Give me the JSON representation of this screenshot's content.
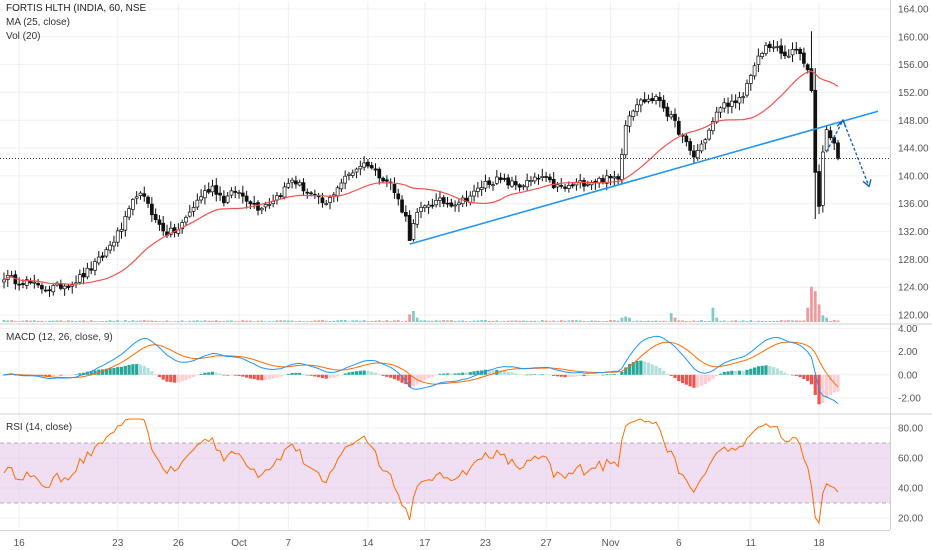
{
  "colors": {
    "up": "#26a69a",
    "down": "#111111",
    "ma": "#ef5350",
    "trendline": "#2196f3",
    "arrow": "#1565c0",
    "macd": "#2196f3",
    "signal": "#ff6d00",
    "hist_pos": "#26a69a",
    "hist_pos_light": "#b2dfdb",
    "hist_neg": "#ef5350",
    "hist_neg_light": "#ffcdd2",
    "rsi": "#ff6d00",
    "rsi_band": "#e1bee7",
    "vol_up": "#80cbc4",
    "vol_down": "#ef9a9a",
    "grid": "#f0f0f0",
    "axis_text": "#555555"
  },
  "legend": {
    "title": "FORTIS HLTH (INDIA, 60, NSE",
    "ma": "MA (25, close)",
    "vol": "Vol (20)",
    "macd": "MACD (12, 26, close, 9)",
    "rsi": "RSI (14, close)"
  },
  "chart_data": [
    {
      "type": "candlestick",
      "title": "FORTIS HLTH (INDIA, 60, NSE",
      "ylim": [
        119,
        165
      ],
      "yticks": [
        "164.00",
        "160.00",
        "156.00",
        "152.00",
        "148.00",
        "144.00",
        "140.00",
        "136.00",
        "132.00",
        "128.00",
        "124.00",
        "120.00"
      ],
      "x_ticks": [
        "16",
        "23",
        "26",
        "Oct",
        "7",
        "14",
        "17",
        "23",
        "27",
        "Nov",
        "6",
        "11",
        "18"
      ],
      "price_path": [
        [
          0,
          125.5
        ],
        [
          3,
          125.0
        ],
        [
          6,
          124.8
        ],
        [
          9,
          124.0
        ],
        [
          12,
          123.8
        ],
        [
          15,
          124.2
        ],
        [
          18,
          124.6
        ],
        [
          21,
          125.8
        ],
        [
          24,
          127.2
        ],
        [
          26,
          128.5
        ],
        [
          29,
          130.8
        ],
        [
          31,
          132.5
        ],
        [
          33,
          134.8
        ],
        [
          35,
          137.5
        ],
        [
          38,
          136.2
        ],
        [
          40,
          133.5
        ],
        [
          43,
          131.8
        ],
        [
          46,
          132.2
        ],
        [
          49,
          134.8
        ],
        [
          52,
          137.2
        ],
        [
          55,
          138.5
        ],
        [
          58,
          136.5
        ],
        [
          61,
          137.8
        ],
        [
          64,
          136.8
        ],
        [
          67,
          135.5
        ],
        [
          70,
          136.2
        ],
        [
          73,
          137.5
        ],
        [
          76,
          139.5
        ],
        [
          79,
          138.2
        ],
        [
          82,
          136.8
        ],
        [
          85,
          135.8
        ],
        [
          88,
          138.5
        ],
        [
          91,
          140.2
        ],
        [
          94,
          141.6
        ],
        [
          96,
          141.8
        ],
        [
          98,
          140.6
        ],
        [
          100,
          139.8
        ],
        [
          102,
          138.8
        ],
        [
          104,
          136.5
        ],
        [
          106,
          134.0
        ],
        [
          107,
          131.2
        ],
        [
          109,
          134.5
        ],
        [
          112,
          136.0
        ],
        [
          115,
          136.3
        ],
        [
          118,
          136.1
        ],
        [
          121,
          136.5
        ],
        [
          124,
          137.5
        ],
        [
          127,
          139.0
        ],
        [
          130,
          139.4
        ],
        [
          133,
          139.0
        ],
        [
          136,
          138.6
        ],
        [
          139,
          139.2
        ],
        [
          142,
          139.8
        ],
        [
          145,
          138.6
        ],
        [
          148,
          138.2
        ],
        [
          151,
          138.8
        ],
        [
          154,
          139.2
        ],
        [
          157,
          139.4
        ],
        [
          160,
          139.6
        ],
        [
          162,
          140.0
        ],
        [
          163,
          143.5
        ],
        [
          164,
          147.5
        ],
        [
          165,
          149.0
        ],
        [
          167,
          150.5
        ],
        [
          170,
          151.0
        ],
        [
          173,
          151.0
        ],
        [
          175,
          149.0
        ],
        [
          177,
          147.5
        ],
        [
          179,
          145.5
        ],
        [
          181,
          143.5
        ],
        [
          182,
          142.8
        ],
        [
          184,
          144.5
        ],
        [
          186,
          146.5
        ],
        [
          189,
          150.0
        ],
        [
          191,
          150.5
        ],
        [
          193,
          150.2
        ],
        [
          195,
          151.5
        ],
        [
          197,
          154.8
        ],
        [
          199,
          156.8
        ],
        [
          201,
          158.5
        ],
        [
          203,
          158.8
        ],
        [
          205,
          157.5
        ],
        [
          207,
          157.0
        ],
        [
          209,
          158.5
        ],
        [
          211,
          156.5
        ],
        [
          212,
          155.5
        ],
        [
          213,
          152.0
        ],
        [
          214,
          141.0
        ],
        [
          215,
          135.5
        ],
        [
          216,
          143.0
        ],
        [
          217,
          147.0
        ],
        [
          218,
          145.5
        ],
        [
          219,
          144.5
        ],
        [
          220,
          143.0
        ]
      ],
      "n_bars": 221,
      "ma_period": 25,
      "volume_spikes": [
        [
          107,
          3.5
        ],
        [
          108,
          5.0
        ],
        [
          109,
          2.0
        ],
        [
          163,
          2.0
        ],
        [
          164,
          2.5
        ],
        [
          165,
          2.0
        ],
        [
          176,
          4.0
        ],
        [
          177,
          2.0
        ],
        [
          187,
          6.5
        ],
        [
          188,
          2.0
        ],
        [
          212,
          6.5
        ],
        [
          213,
          16.0
        ],
        [
          214,
          14.0
        ],
        [
          215,
          8.0
        ],
        [
          216,
          3.0
        ],
        [
          217,
          2.0
        ]
      ]
    },
    {
      "type": "line",
      "title": "MACD (12, 26, close, 9)",
      "ylim": [
        -3.2,
        4.2
      ],
      "yticks": [
        "4.00",
        "2.00",
        "0.00",
        "-2.00"
      ],
      "series": [
        {
          "name": "MACD"
        },
        {
          "name": "Signal"
        },
        {
          "name": "Histogram"
        }
      ]
    },
    {
      "type": "line",
      "title": "RSI (14, close)",
      "ylim": [
        12,
        88
      ],
      "yticks": [
        "80.00",
        "60.00",
        "40.00",
        "20.00"
      ],
      "bands": [
        30,
        70
      ]
    }
  ]
}
